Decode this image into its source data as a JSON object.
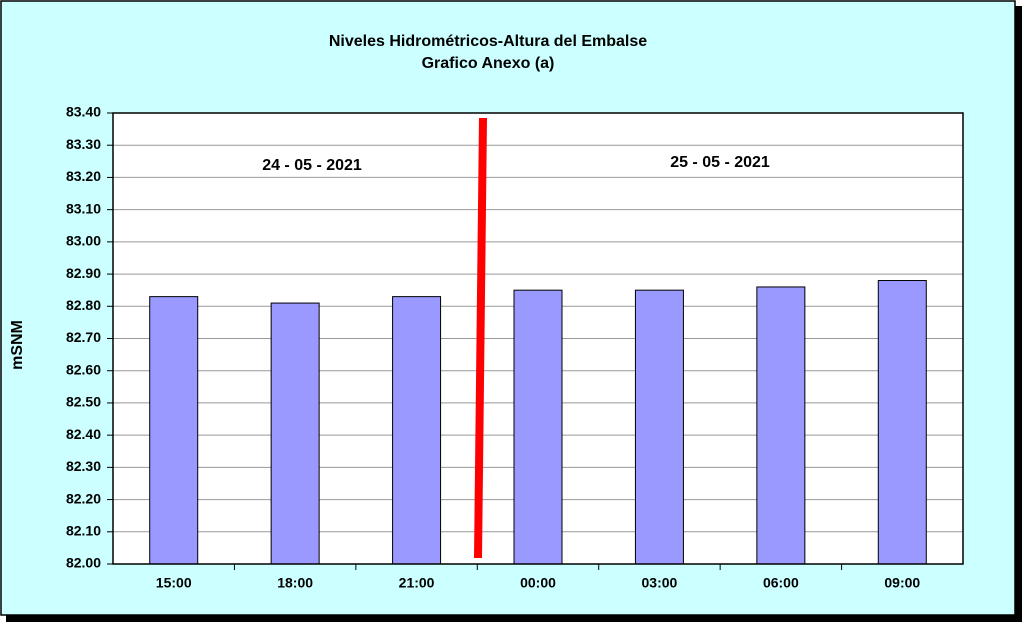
{
  "chart_data": {
    "type": "bar",
    "title": "Niveles Hidrométricos-Altura del Embalse",
    "subtitle": "Grafico Anexo (a)",
    "y_label": "mSNM",
    "annotations": [
      "24 - 05 - 2021",
      "25 - 05 - 2021"
    ],
    "categories": [
      "15:00",
      "18:00",
      "21:00",
      "00:00",
      "03:00",
      "06:00",
      "09:00"
    ],
    "values": [
      82.83,
      82.81,
      82.83,
      82.85,
      82.85,
      82.86,
      82.88
    ],
    "color": "#9999ff",
    "ylim": [
      82,
      83.4
    ],
    "yticks": [
      {
        "value": 82,
        "label": "82.00"
      },
      {
        "value": 82.1,
        "label": "82.10"
      },
      {
        "value": 82.2,
        "label": "82.20"
      },
      {
        "value": 82.3,
        "label": "82.30"
      },
      {
        "value": 82.4,
        "label": "82.40"
      },
      {
        "value": 82.5,
        "label": "82.50"
      },
      {
        "value": 82.6,
        "label": "82.60"
      },
      {
        "value": 82.7,
        "label": "82.70"
      },
      {
        "value": 82.8,
        "label": "82.80"
      },
      {
        "value": 82.9,
        "label": "82.90"
      },
      {
        "value": 83,
        "label": "83.00"
      },
      {
        "value": 83.1,
        "label": "83.10"
      },
      {
        "value": 83.2,
        "label": "83.20"
      },
      {
        "value": 83.3,
        "label": "83.30"
      },
      {
        "value": 83.4,
        "label": "83.40"
      }
    ],
    "grid": true
  }
}
